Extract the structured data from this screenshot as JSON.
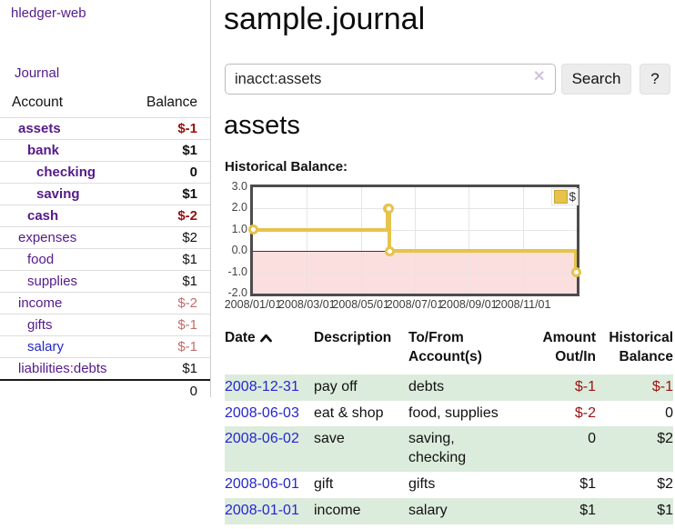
{
  "colors": {
    "link_purple": "#551a8b",
    "link_blue": "#2626cf",
    "negative_strong": "#9b0d0d",
    "negative_muted": "#c16c6e",
    "row_green": "#dcecdc",
    "chart_line_gold": "#e7c34b",
    "chart_negative_fill": "#fbdede",
    "chart_zero_line": "#8b1212",
    "button_bg": "#ececec"
  },
  "sidebar": {
    "app_title": "hledger-web",
    "journal_link": "Journal",
    "accounts": {
      "headers": [
        "Account",
        "Balance"
      ],
      "rows": [
        {
          "account": "assets",
          "depth": 1,
          "bold": true,
          "link": "purple",
          "balance": "$-1",
          "balance_style": "neg-strong"
        },
        {
          "account": "bank",
          "depth": 2,
          "bold": true,
          "link": "purple",
          "balance": "$1",
          "balance_style": "pos"
        },
        {
          "account": "checking",
          "depth": 3,
          "bold": true,
          "link": "purple",
          "balance": "0",
          "balance_style": "pos"
        },
        {
          "account": "saving",
          "depth": 3,
          "bold": true,
          "link": "purple",
          "balance": "$1",
          "balance_style": "pos"
        },
        {
          "account": "cash",
          "depth": 2,
          "bold": true,
          "link": "purple",
          "balance": "$-2",
          "balance_style": "neg-strong"
        },
        {
          "account": "expenses",
          "depth": 1,
          "bold": false,
          "link": "purple",
          "balance": "$2",
          "balance_style": "pos"
        },
        {
          "account": "food",
          "depth": 2,
          "bold": false,
          "link": "purple",
          "balance": "$1",
          "balance_style": "pos"
        },
        {
          "account": "supplies",
          "depth": 2,
          "bold": false,
          "link": "purple",
          "balance": "$1",
          "balance_style": "pos"
        },
        {
          "account": "income",
          "depth": 1,
          "bold": false,
          "link": "purple",
          "balance": "$-2",
          "balance_style": "neg-muted"
        },
        {
          "account": "gifts",
          "depth": 2,
          "bold": false,
          "link": "purple",
          "balance": "$-1",
          "balance_style": "neg-muted"
        },
        {
          "account": "salary",
          "depth": 2,
          "bold": false,
          "link": "blue",
          "balance": "$-1",
          "balance_style": "neg-muted"
        },
        {
          "account": "liabilities:debts",
          "depth": 1,
          "bold": false,
          "link": "purple",
          "balance": "$1",
          "balance_style": "pos"
        }
      ],
      "total": "0"
    }
  },
  "main": {
    "title": "sample.journal",
    "account_heading": "assets",
    "chart_heading": "Historical Balance:"
  },
  "search": {
    "value": "inacct:assets",
    "clear_icon": "✕",
    "button_label": "Search",
    "help_label": "?"
  },
  "chart_data": {
    "type": "line",
    "title": "Historical Balance:",
    "step": true,
    "series": [
      {
        "name": "$",
        "color": "#e7c34b",
        "points": [
          [
            "2008-01-01",
            1
          ],
          [
            "2008-06-01",
            2
          ],
          [
            "2008-06-02",
            2
          ],
          [
            "2008-06-03",
            0
          ],
          [
            "2008-12-31",
            -1
          ]
        ]
      }
    ],
    "ylim": [
      -2,
      3
    ],
    "ytick_labels": [
      "3.0",
      "2.0",
      "1.0",
      "0.0",
      "-1.0",
      "-2.0"
    ],
    "yticks": [
      3,
      2,
      1,
      0,
      -1,
      -2
    ],
    "xtick_labels": [
      "2008/01/01",
      "2008/03/01",
      "2008/05/01",
      "2008/07/01",
      "2008/09/01",
      "2008/11/01"
    ],
    "xtick_months": [
      0,
      2,
      4,
      6,
      8,
      10
    ],
    "x_total_months": 12,
    "grid": true,
    "legend_position": "top-right",
    "negative_region": true
  },
  "register": {
    "headers": [
      {
        "label": "Date",
        "sorted": "asc"
      },
      {
        "label": "Description"
      },
      {
        "label": "To/From Account(s)"
      },
      {
        "label": "Amount Out/In"
      },
      {
        "label": "Historical Balance"
      }
    ],
    "rows": [
      {
        "date": "2008-12-31",
        "description": "pay off",
        "accounts": "debts",
        "amount": "$-1",
        "amount_negative": true,
        "balance": "$-1",
        "balance_negative": true
      },
      {
        "date": "2008-06-03",
        "description": "eat & shop",
        "accounts": "food, supplies",
        "amount": "$-2",
        "amount_negative": true,
        "balance": "0",
        "balance_negative": false
      },
      {
        "date": "2008-06-02",
        "description": "save",
        "accounts": "saving, checking",
        "amount": "0",
        "amount_negative": false,
        "balance": "$2",
        "balance_negative": false
      },
      {
        "date": "2008-06-01",
        "description": "gift",
        "accounts": "gifts",
        "amount": "$1",
        "amount_negative": false,
        "balance": "$2",
        "balance_negative": false
      },
      {
        "date": "2008-01-01",
        "description": "income",
        "accounts": "salary",
        "amount": "$1",
        "amount_negative": false,
        "balance": "$1",
        "balance_negative": false
      }
    ]
  }
}
